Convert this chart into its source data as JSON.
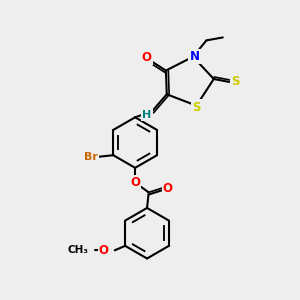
{
  "bg_color": "#eeeeee",
  "bond_color": "#000000",
  "bond_lw": 1.5,
  "atom_colors": {
    "O": "#ff0000",
    "N": "#0000ff",
    "S": "#cccc00",
    "Br": "#cc6600",
    "H": "#008080",
    "C": "#000000"
  },
  "font_size": 8.5
}
